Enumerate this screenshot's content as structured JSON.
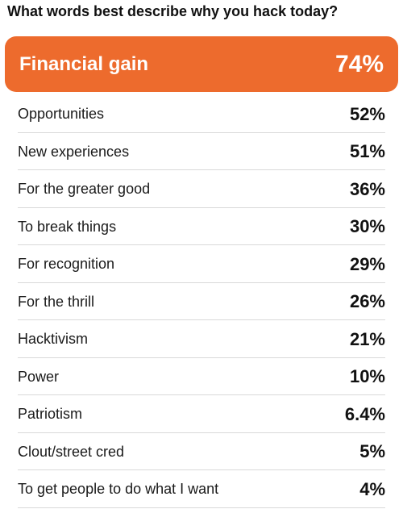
{
  "chart_data": {
    "type": "table",
    "title": "What words best describe why you hack today?",
    "unit": "%",
    "highlight_color": "#ED6B2D",
    "categories": [
      "Financial gain",
      "Opportunities",
      "New experiences",
      "For the greater good",
      "To break things",
      "For recognition",
      "For the thrill",
      "Hacktivism",
      "Power",
      "Patriotism",
      "Clout/street cred",
      "To get people to do what I want"
    ],
    "values": [
      74,
      52,
      51,
      36,
      30,
      29,
      26,
      21,
      10,
      6.4,
      5,
      4
    ],
    "value_labels": [
      "74%",
      "52%",
      "51%",
      "36%",
      "30%",
      "29%",
      "26%",
      "21%",
      "10%",
      "6.4%",
      "5%",
      "4%"
    ]
  }
}
